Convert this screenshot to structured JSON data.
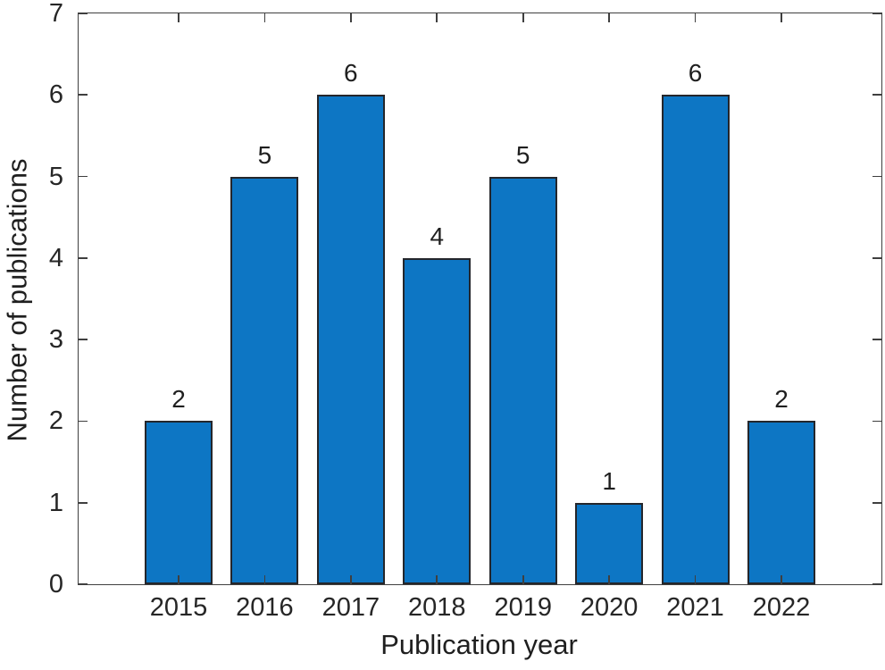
{
  "figure": {
    "background": "#ffffff",
    "axis_color": "#3f3f3f",
    "text_color": "#1f1f1f"
  },
  "chart_data": {
    "type": "bar",
    "title": "",
    "xlabel": "Publication year",
    "ylabel": "Number of publications",
    "categories": [
      "2015",
      "2016",
      "2017",
      "2018",
      "2019",
      "2020",
      "2021",
      "2022"
    ],
    "values": [
      2,
      5,
      6,
      4,
      5,
      1,
      6,
      2
    ],
    "bar_labels": [
      "2",
      "5",
      "6",
      "4",
      "5",
      "1",
      "6",
      "2"
    ],
    "ylim": [
      0,
      7
    ],
    "yticks": [
      "0",
      "1",
      "2",
      "3",
      "4",
      "5",
      "6",
      "7"
    ],
    "grid": false,
    "legend_position": "none",
    "bar_color": "#0d76c4",
    "bar_edge_color": "#24262b",
    "tick_direction": "in",
    "box": true
  }
}
